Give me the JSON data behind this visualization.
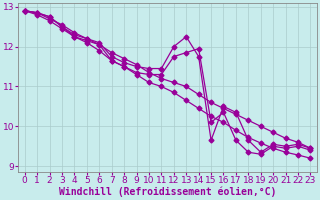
{
  "background_color": "#c8ecec",
  "line_color": "#990099",
  "marker": "D",
  "marker_size": 2.5,
  "line_width": 0.9,
  "xlabel": "Windchill (Refroidissement éolien,°C)",
  "xlabel_fontsize": 7,
  "xlim": [
    -0.5,
    23.5
  ],
  "ylim": [
    8.85,
    13.1
  ],
  "yticks": [
    9,
    10,
    11,
    12,
    13
  ],
  "xticks": [
    0,
    1,
    2,
    3,
    4,
    5,
    6,
    7,
    8,
    9,
    10,
    11,
    12,
    13,
    14,
    15,
    16,
    17,
    18,
    19,
    20,
    21,
    22,
    23
  ],
  "tick_fontsize": 6.5,
  "grid_color": "#aacccc",
  "curves": [
    {
      "x": [
        0,
        1,
        2,
        3,
        4,
        5,
        6,
        7,
        8,
        9,
        10,
        11,
        12,
        13,
        14,
        15,
        16,
        17,
        18,
        19,
        20,
        21,
        22,
        23
      ],
      "y": [
        12.9,
        12.85,
        12.7,
        12.55,
        12.35,
        12.2,
        12.05,
        11.85,
        11.7,
        11.55,
        11.35,
        11.2,
        11.1,
        11.0,
        10.8,
        10.6,
        10.45,
        10.3,
        10.15,
        10.0,
        9.85,
        9.7,
        9.6,
        9.45
      ]
    },
    {
      "x": [
        0,
        1,
        2,
        3,
        4,
        5,
        6,
        7,
        8,
        9,
        10,
        11,
        12,
        13,
        14,
        15,
        16,
        17,
        18,
        19,
        20,
        21,
        22,
        23
      ],
      "y": [
        12.9,
        12.8,
        12.65,
        12.45,
        12.25,
        12.1,
        11.9,
        11.65,
        11.5,
        11.3,
        11.1,
        11.0,
        10.85,
        10.65,
        10.45,
        10.25,
        10.1,
        9.9,
        9.72,
        9.58,
        9.45,
        9.35,
        9.28,
        9.2
      ]
    },
    {
      "x": [
        0,
        1,
        2,
        3,
        4,
        5,
        6,
        7,
        8,
        9,
        10,
        11,
        12,
        13,
        14,
        15,
        16,
        17,
        18,
        19,
        20,
        21,
        22,
        23
      ],
      "y": [
        12.9,
        12.85,
        12.75,
        12.5,
        12.3,
        12.2,
        12.1,
        11.75,
        11.6,
        11.5,
        11.45,
        11.45,
        12.0,
        12.25,
        11.75,
        9.65,
        10.5,
        10.35,
        9.65,
        9.35,
        9.55,
        9.5,
        9.55,
        9.45
      ]
    },
    {
      "x": [
        0,
        1,
        2,
        3,
        4,
        5,
        6,
        7,
        8,
        9,
        10,
        11,
        12,
        13,
        14,
        15,
        16,
        17,
        18,
        19,
        20,
        21,
        22,
        23
      ],
      "y": [
        12.9,
        12.85,
        12.75,
        12.5,
        12.25,
        12.15,
        12.05,
        11.65,
        11.5,
        11.35,
        11.3,
        11.3,
        11.75,
        11.85,
        11.95,
        10.1,
        10.35,
        9.65,
        9.35,
        9.3,
        9.5,
        9.45,
        9.5,
        9.4
      ]
    }
  ]
}
